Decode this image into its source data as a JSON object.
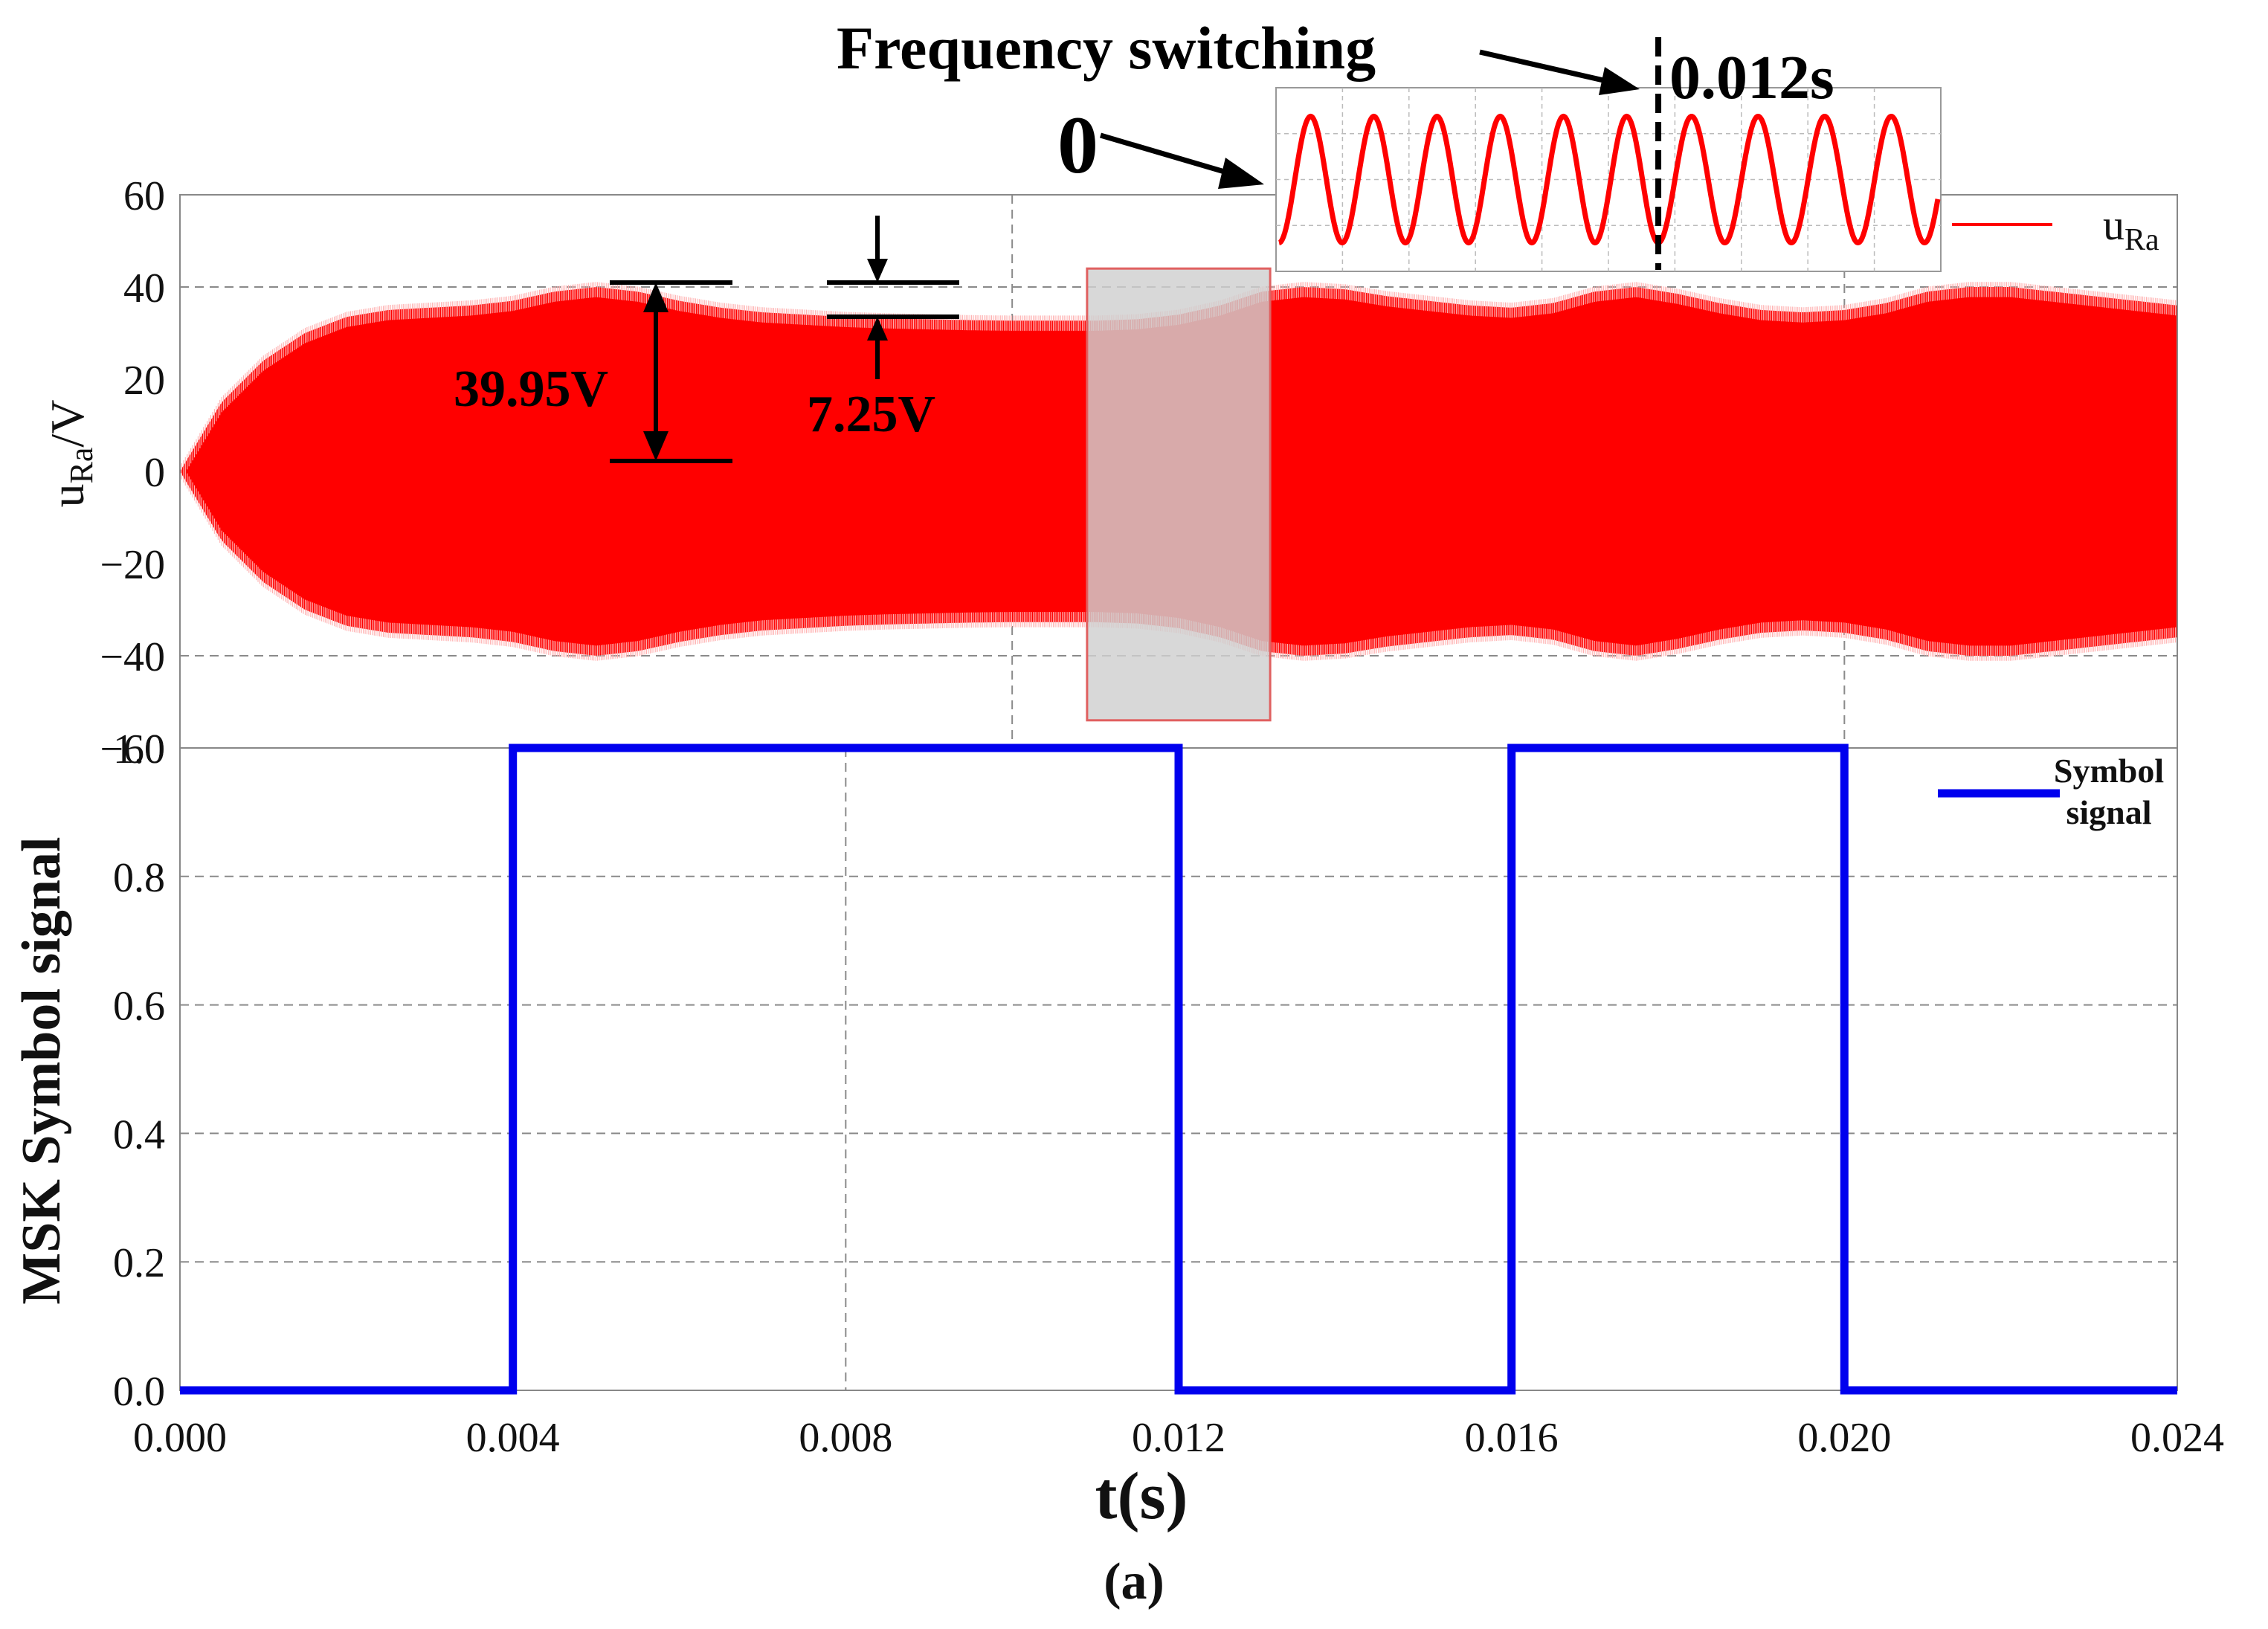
{
  "caption": "(a)",
  "colors": {
    "voltage": "#ff0000",
    "symbol": "#0000ee",
    "annotation": "#000000",
    "highlight_fill": "#d0d0d0",
    "highlight_border": "#e06060",
    "grid": "#8a8a8a"
  },
  "chart_data": [
    {
      "type": "area",
      "id": "top",
      "ylabel_main": "u",
      "ylabel_sub": "Ra",
      "ylabel_unit": "/V",
      "ylim": [
        -60,
        60
      ],
      "yticks": [
        60,
        40,
        20,
        0,
        -20,
        -40,
        -60
      ],
      "ytick_labels": [
        "60",
        "40",
        "20",
        "0",
        "−20",
        "−40",
        "−60"
      ],
      "xlim": [
        0,
        0.024
      ],
      "grid_x": [
        0.01,
        0.02
      ],
      "grid_y": [
        40,
        -40
      ],
      "legend": {
        "label_main": "u",
        "label_sub": "Ra",
        "position": "top-right"
      },
      "envelope": {
        "t": [
          0,
          0.0005,
          0.001,
          0.0015,
          0.002,
          0.0025,
          0.003,
          0.0035,
          0.004,
          0.0045,
          0.005,
          0.0055,
          0.006,
          0.0065,
          0.007,
          0.0075,
          0.008,
          0.0085,
          0.009,
          0.0095,
          0.01,
          0.0105,
          0.011,
          0.0115,
          0.012,
          0.0125,
          0.013,
          0.0135,
          0.014,
          0.0145,
          0.015,
          0.0155,
          0.016,
          0.0165,
          0.017,
          0.0175,
          0.018,
          0.0185,
          0.019,
          0.0195,
          0.02,
          0.0205,
          0.021,
          0.0215,
          0.022,
          0.0225,
          0.023,
          0.0235,
          0.024
        ],
        "amplitude": [
          0,
          15,
          24,
          30,
          33.5,
          35,
          35.5,
          36,
          37,
          39,
          40,
          39,
          37,
          35.5,
          34.5,
          34,
          33.5,
          33.2,
          33,
          32.8,
          32.7,
          32.7,
          32.7,
          33,
          34,
          36,
          39,
          40,
          39.5,
          38,
          37,
          36,
          35.5,
          36.5,
          39,
          40,
          38.5,
          36.5,
          35,
          34.5,
          35,
          36.5,
          39,
          40,
          40,
          39,
          38,
          37,
          36
        ]
      },
      "highlight": {
        "t_start": 0.0109,
        "t_end": 0.0131,
        "y_top": 44,
        "y_bottom": -54
      },
      "annotations": {
        "amplitude_label": "39.95V",
        "ripple_label": "7.25V",
        "frequency_switching": "Frequency switching",
        "zero_label": "0",
        "switch_time": "0.012s"
      },
      "inset": {
        "cycles_before": 6,
        "cycles_after": 4.2,
        "switch_fraction": 0.575
      }
    },
    {
      "type": "line",
      "id": "bottom",
      "ylabel": "MSK Symbol signal",
      "ylim": [
        0,
        1
      ],
      "yticks": [
        0,
        0.2,
        0.4,
        0.6,
        0.8,
        1.0
      ],
      "ytick_labels": [
        "0.0",
        "0.2",
        "0.4",
        "0.6",
        "0.8",
        "1.0"
      ],
      "xlim": [
        0,
        0.024
      ],
      "xticks": [
        0,
        0.004,
        0.008,
        0.012,
        0.016,
        0.02,
        0.024
      ],
      "xtick_labels": [
        "0.000",
        "0.004",
        "0.008",
        "0.012",
        "0.016",
        "0.020",
        "0.024"
      ],
      "xlabel": "t(s)",
      "grid_x": [
        0.008,
        0.012
      ],
      "grid_y": [
        0.2,
        0.4,
        0.6,
        0.8
      ],
      "legend": {
        "line1": "Symbol",
        "line2": "signal",
        "position": "top-right"
      },
      "series": [
        {
          "name": "Symbol signal",
          "x": [
            0,
            0.004,
            0.004,
            0.012,
            0.012,
            0.016,
            0.016,
            0.02,
            0.02,
            0.024
          ],
          "y": [
            0,
            0,
            1,
            1,
            0,
            0,
            1,
            1,
            0,
            0
          ]
        }
      ]
    }
  ]
}
